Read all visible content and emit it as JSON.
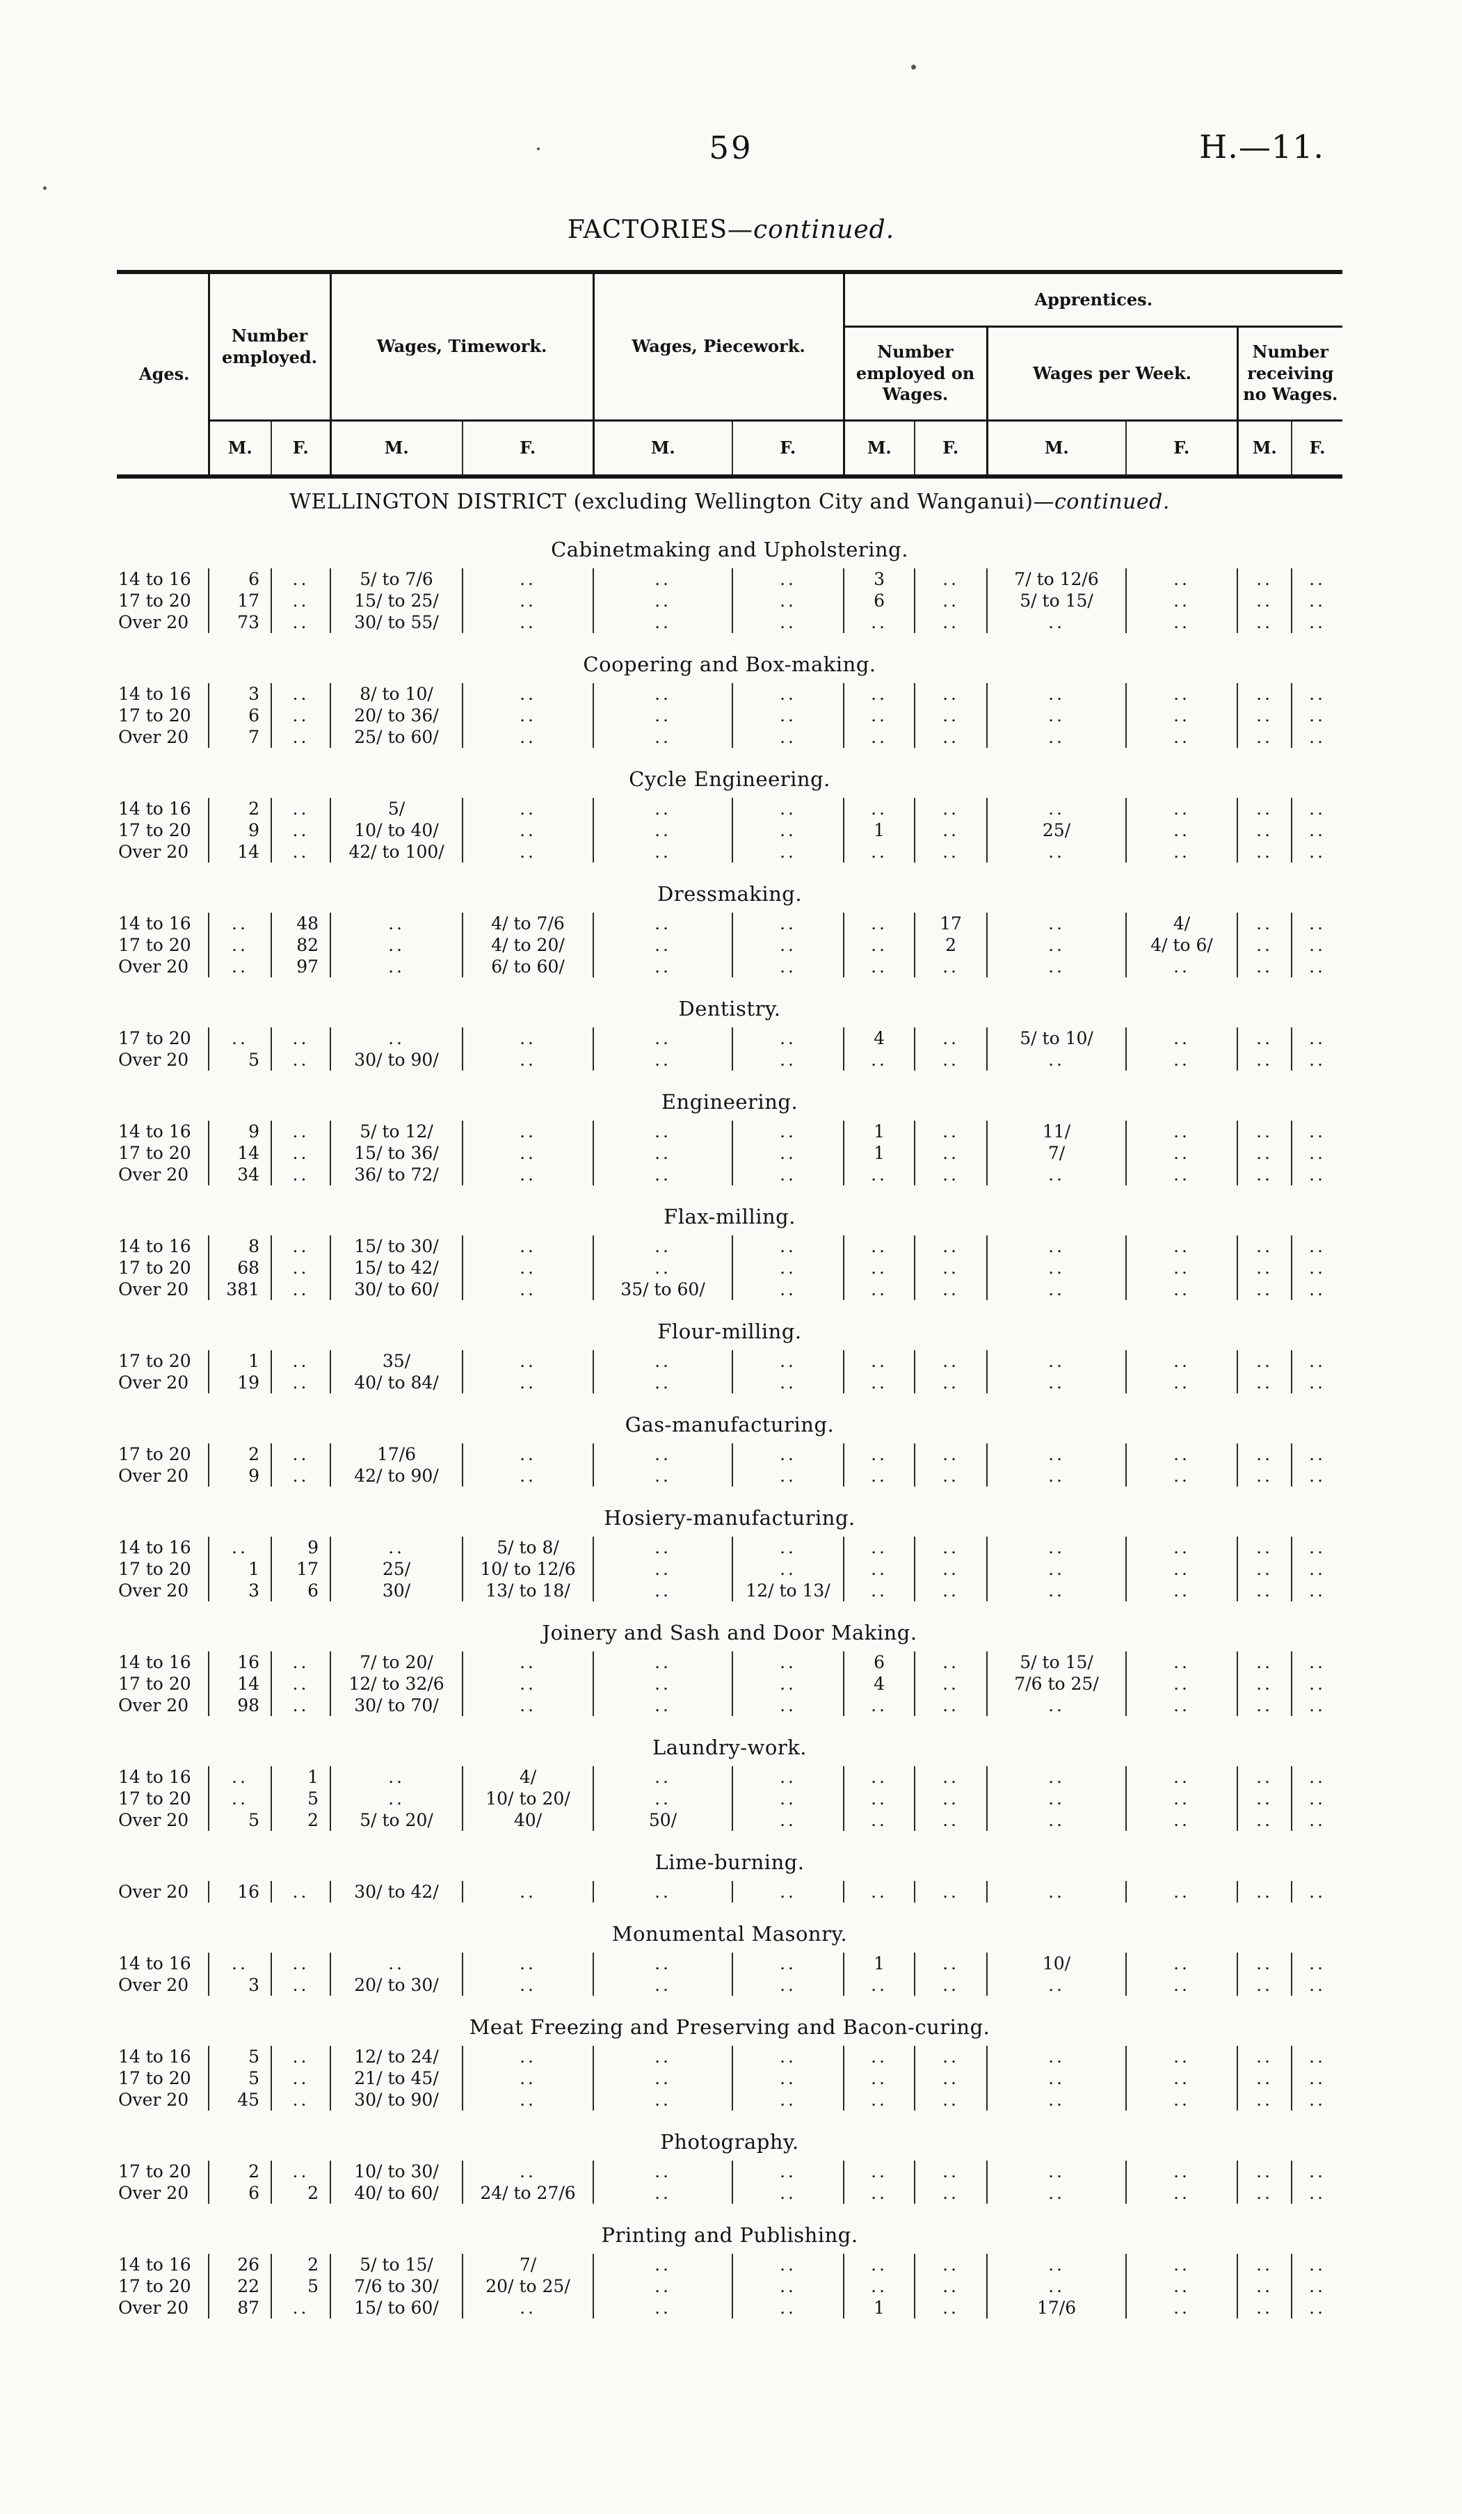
{
  "page": {
    "number": "59",
    "doc_ref": "H.—11.",
    "title_main": "FACTORIES—",
    "title_continued": "continued."
  },
  "table": {
    "headers": {
      "ages": "Ages.",
      "number_employed": "Number employed.",
      "wages_timework": "Wages, Timework.",
      "wages_piecework": "Wages, Piecework.",
      "apprentices": "Apprentices.",
      "app_number_employed": "Number employed on Wages.",
      "app_wages_per_week": "Wages per Week.",
      "app_number_no_wages": "Number receiving no Wages.",
      "m": "M.",
      "f": "F."
    },
    "district": {
      "main": "WELLINGTON DISTRICT (excluding Wellington City and Wanganui)—",
      "continued": "continued."
    },
    "column_order": [
      "employed_m",
      "employed_f",
      "timework_m",
      "timework_f",
      "piecework_m",
      "piecework_f",
      "apprentice_employed_m",
      "apprentice_employed_f",
      "apprentice_wages_week_m",
      "apprentice_wages_week_f",
      "apprentice_no_wages_m",
      "apprentice_no_wages_f"
    ],
    "sections": [
      {
        "title": "Cabinetmaking and Upholstering.",
        "rows": [
          {
            "age": "14 to 16",
            "cells": [
              "6",
              "..",
              "5/ to 7/6",
              "..",
              "..",
              "..",
              "3",
              "..",
              "7/ to 12/6",
              "..",
              "..",
              ".."
            ]
          },
          {
            "age": "17 to 20",
            "cells": [
              "17",
              "..",
              "15/ to 25/",
              "..",
              "..",
              "..",
              "6",
              "..",
              "5/ to 15/",
              "..",
              "..",
              ".."
            ]
          },
          {
            "age": "Over 20",
            "cells": [
              "73",
              "..",
              "30/ to 55/",
              "..",
              "..",
              "..",
              "..",
              "..",
              "..",
              "..",
              "..",
              ".."
            ]
          }
        ]
      },
      {
        "title": "Coopering and Box-making.",
        "rows": [
          {
            "age": "14 to 16",
            "cells": [
              "3",
              "..",
              "8/ to 10/",
              "..",
              "..",
              "..",
              "..",
              "..",
              "..",
              "..",
              "..",
              ".."
            ]
          },
          {
            "age": "17 to 20",
            "cells": [
              "6",
              "..",
              "20/ to 36/",
              "..",
              "..",
              "..",
              "..",
              "..",
              "..",
              "..",
              "..",
              ".."
            ]
          },
          {
            "age": "Over 20",
            "cells": [
              "7",
              "..",
              "25/ to 60/",
              "..",
              "..",
              "..",
              "..",
              "..",
              "..",
              "..",
              "..",
              ".."
            ]
          }
        ]
      },
      {
        "title": "Cycle Engineering.",
        "rows": [
          {
            "age": "14 to 16",
            "cells": [
              "2",
              "..",
              "5/",
              "..",
              "..",
              "..",
              "..",
              "..",
              "..",
              "..",
              "..",
              ".."
            ]
          },
          {
            "age": "17 to 20",
            "cells": [
              "9",
              "..",
              "10/ to 40/",
              "..",
              "..",
              "..",
              "1",
              "..",
              "25/",
              "..",
              "..",
              ".."
            ]
          },
          {
            "age": "Over 20",
            "cells": [
              "14",
              "..",
              "42/ to 100/",
              "..",
              "..",
              "..",
              "..",
              "..",
              "..",
              "..",
              "..",
              ".."
            ]
          }
        ]
      },
      {
        "title": "Dressmaking.",
        "rows": [
          {
            "age": "14 to 16",
            "cells": [
              "..",
              "48",
              "..",
              "4/ to 7/6",
              "..",
              "..",
              "..",
              "17",
              "..",
              "4/",
              "..",
              ".."
            ]
          },
          {
            "age": "17 to 20",
            "cells": [
              "..",
              "82",
              "..",
              "4/ to 20/",
              "..",
              "..",
              "..",
              "2",
              "..",
              "4/ to 6/",
              "..",
              ".."
            ]
          },
          {
            "age": "Over 20",
            "cells": [
              "..",
              "97",
              "..",
              "6/ to 60/",
              "..",
              "..",
              "..",
              "..",
              "..",
              "..",
              "..",
              ".."
            ]
          }
        ]
      },
      {
        "title": "Dentistry.",
        "rows": [
          {
            "age": "17 to 20",
            "cells": [
              "..",
              "..",
              "..",
              "..",
              "..",
              "..",
              "4",
              "..",
              "5/ to 10/",
              "..",
              "..",
              ".."
            ]
          },
          {
            "age": "Over 20",
            "cells": [
              "5",
              "..",
              "30/ to 90/",
              "..",
              "..",
              "..",
              "..",
              "..",
              "..",
              "..",
              "..",
              ".."
            ]
          }
        ]
      },
      {
        "title": "Engineering.",
        "rows": [
          {
            "age": "14 to 16",
            "cells": [
              "9",
              "..",
              "5/ to 12/",
              "..",
              "..",
              "..",
              "1",
              "..",
              "11/",
              "..",
              "..",
              ".."
            ]
          },
          {
            "age": "17 to 20",
            "cells": [
              "14",
              "..",
              "15/ to 36/",
              "..",
              "..",
              "..",
              "1",
              "..",
              "7/",
              "..",
              "..",
              ".."
            ]
          },
          {
            "age": "Over 20",
            "cells": [
              "34",
              "..",
              "36/ to 72/",
              "..",
              "..",
              "..",
              "..",
              "..",
              "..",
              "..",
              "..",
              ".."
            ]
          }
        ]
      },
      {
        "title": "Flax-milling.",
        "rows": [
          {
            "age": "14 to 16",
            "cells": [
              "8",
              "..",
              "15/ to 30/",
              "..",
              "..",
              "..",
              "..",
              "..",
              "..",
              "..",
              "..",
              ".."
            ]
          },
          {
            "age": "17 to 20",
            "cells": [
              "68",
              "..",
              "15/ to 42/",
              "..",
              "..",
              "..",
              "..",
              "..",
              "..",
              "..",
              "..",
              ".."
            ]
          },
          {
            "age": "Over 20",
            "cells": [
              "381",
              "..",
              "30/ to 60/",
              "..",
              "35/ to 60/",
              "..",
              "..",
              "..",
              "..",
              "..",
              "..",
              ".."
            ]
          }
        ]
      },
      {
        "title": "Flour-milling.",
        "rows": [
          {
            "age": "17 to 20",
            "cells": [
              "1",
              "..",
              "35/",
              "..",
              "..",
              "..",
              "..",
              "..",
              "..",
              "..",
              "..",
              ".."
            ]
          },
          {
            "age": "Over 20",
            "cells": [
              "19",
              "..",
              "40/ to 84/",
              "..",
              "..",
              "..",
              "..",
              "..",
              "..",
              "..",
              "..",
              ".."
            ]
          }
        ]
      },
      {
        "title": "Gas-manufacturing.",
        "rows": [
          {
            "age": "17 to 20",
            "cells": [
              "2",
              "..",
              "17/6",
              "..",
              "..",
              "..",
              "..",
              "..",
              "..",
              "..",
              "..",
              ".."
            ]
          },
          {
            "age": "Over 20",
            "cells": [
              "9",
              "..",
              "42/ to 90/",
              "..",
              "..",
              "..",
              "..",
              "..",
              "..",
              "..",
              "..",
              ".."
            ]
          }
        ]
      },
      {
        "title": "Hosiery-manufacturing.",
        "rows": [
          {
            "age": "14 to 16",
            "cells": [
              "..",
              "9",
              "..",
              "5/ to 8/",
              "..",
              "..",
              "..",
              "..",
              "..",
              "..",
              "..",
              ".."
            ]
          },
          {
            "age": "17 to 20",
            "cells": [
              "1",
              "17",
              "25/",
              "10/ to 12/6",
              "..",
              "..",
              "..",
              "..",
              "..",
              "..",
              "..",
              ".."
            ]
          },
          {
            "age": "Over 20",
            "cells": [
              "3",
              "6",
              "30/",
              "13/ to 18/",
              "..",
              "12/ to 13/",
              "..",
              "..",
              "..",
              "..",
              "..",
              ".."
            ]
          }
        ]
      },
      {
        "title": "Joinery and Sash and Door Making.",
        "rows": [
          {
            "age": "14 to 16",
            "cells": [
              "16",
              "..",
              "7/ to 20/",
              "..",
              "..",
              "..",
              "6",
              "..",
              "5/ to 15/",
              "..",
              "..",
              ".."
            ]
          },
          {
            "age": "17 to 20",
            "cells": [
              "14",
              "..",
              "12/ to 32/6",
              "..",
              "..",
              "..",
              "4",
              "..",
              "7/6 to 25/",
              "..",
              "..",
              ".."
            ]
          },
          {
            "age": "Over 20",
            "cells": [
              "98",
              "..",
              "30/ to 70/",
              "..",
              "..",
              "..",
              "..",
              "..",
              "..",
              "..",
              "..",
              ".."
            ]
          }
        ]
      },
      {
        "title": "Laundry-work.",
        "rows": [
          {
            "age": "14 to 16",
            "cells": [
              "..",
              "1",
              "..",
              "4/",
              "..",
              "..",
              "..",
              "..",
              "..",
              "..",
              "..",
              ".."
            ]
          },
          {
            "age": "17 to 20",
            "cells": [
              "..",
              "5",
              "..",
              "10/ to 20/",
              "..",
              "..",
              "..",
              "..",
              "..",
              "..",
              "..",
              ".."
            ]
          },
          {
            "age": "Over 20",
            "cells": [
              "5",
              "2",
              "5/ to 20/",
              "40/",
              "50/",
              "..",
              "..",
              "..",
              "..",
              "..",
              "..",
              ".."
            ]
          }
        ]
      },
      {
        "title": "Lime-burning.",
        "rows": [
          {
            "age": "Over 20",
            "cells": [
              "16",
              "..",
              "30/ to 42/",
              "..",
              "..",
              "..",
              "..",
              "..",
              "..",
              "..",
              "..",
              ".."
            ]
          }
        ]
      },
      {
        "title": "Monumental Masonry.",
        "rows": [
          {
            "age": "14 to 16",
            "cells": [
              "..",
              "..",
              "..",
              "..",
              "..",
              "..",
              "1",
              "..",
              "10/",
              "..",
              "..",
              ".."
            ]
          },
          {
            "age": "Over 20",
            "cells": [
              "3",
              "..",
              "20/ to 30/",
              "..",
              "..",
              "..",
              "..",
              "..",
              "..",
              "..",
              "..",
              ".."
            ]
          }
        ]
      },
      {
        "title": "Meat Freezing and Preserving and Bacon-curing.",
        "rows": [
          {
            "age": "14 to 16",
            "cells": [
              "5",
              "..",
              "12/ to 24/",
              "..",
              "..",
              "..",
              "..",
              "..",
              "..",
              "..",
              "..",
              ".."
            ]
          },
          {
            "age": "17 to 20",
            "cells": [
              "5",
              "..",
              "21/ to 45/",
              "..",
              "..",
              "..",
              "..",
              "..",
              "..",
              "..",
              "..",
              ".."
            ]
          },
          {
            "age": "Over 20",
            "cells": [
              "45",
              "..",
              "30/ to 90/",
              "..",
              "..",
              "..",
              "..",
              "..",
              "..",
              "..",
              "..",
              ".."
            ]
          }
        ]
      },
      {
        "title": "Photography.",
        "rows": [
          {
            "age": "17 to 20",
            "cells": [
              "2",
              "..",
              "10/ to 30/",
              "..",
              "..",
              "..",
              "..",
              "..",
              "..",
              "..",
              "..",
              ".."
            ]
          },
          {
            "age": "Over 20",
            "cells": [
              "6",
              "2",
              "40/ to 60/",
              "24/ to 27/6",
              "..",
              "..",
              "..",
              "..",
              "..",
              "..",
              "..",
              ".."
            ]
          }
        ]
      },
      {
        "title": "Printing and Publishing.",
        "rows": [
          {
            "age": "14 to 16",
            "cells": [
              "26",
              "2",
              "5/ to 15/",
              "7/",
              "..",
              "..",
              "..",
              "..",
              "..",
              "..",
              "..",
              ".."
            ]
          },
          {
            "age": "17 to 20",
            "cells": [
              "22",
              "5",
              "7/6 to 30/",
              "20/ to 25/",
              "..",
              "..",
              "..",
              "..",
              "..",
              "..",
              "..",
              ".."
            ]
          },
          {
            "age": "Over 20",
            "cells": [
              "87",
              "..",
              "15/ to 60/",
              "..",
              "..",
              "..",
              "1",
              "..",
              "17/6",
              "..",
              "..",
              ".."
            ]
          }
        ]
      }
    ]
  }
}
